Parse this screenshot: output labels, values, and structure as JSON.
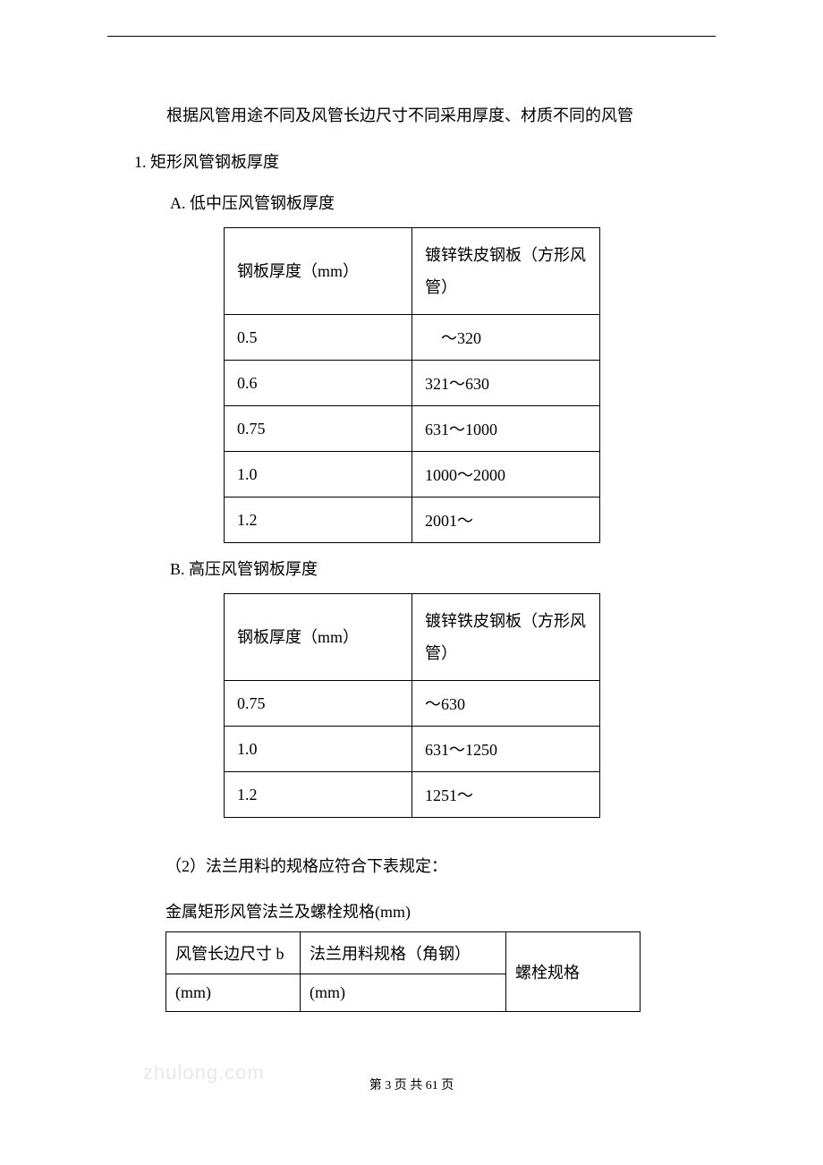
{
  "intro": "根据风管用途不同及风管长边尺寸不同采用厚度、材质不同的风管",
  "section1": {
    "number": "1.",
    "title": "矩形风管钢板厚度",
    "subA": {
      "letter": "A.",
      "title": "低中压风管钢板厚度",
      "table": {
        "header1": "钢板厚度（mm）",
        "header2": "镀锌铁皮钢板（方形风管）",
        "rows": [
          [
            "0.5",
            "　～320"
          ],
          [
            "0.6",
            "321～630"
          ],
          [
            "0.75",
            "631～1000"
          ],
          [
            "1.0",
            "1000～2000"
          ],
          [
            "1.2",
            "2001～"
          ]
        ]
      }
    },
    "subB": {
      "letter": "B.",
      "title": "高压风管钢板厚度",
      "table": {
        "header1": "钢板厚度（mm）",
        "header2": "镀锌铁皮钢板（方形风管）",
        "rows": [
          [
            "0.75",
            "～630"
          ],
          [
            "1.0",
            "631～1250"
          ],
          [
            "1.2",
            "1251～"
          ]
        ]
      }
    }
  },
  "section2": {
    "text": "（2）法兰用料的规格应符合下表规定：",
    "table_title": "金属矩形风管法兰及螺栓规格(mm)",
    "table": {
      "h1_line1": "风管长边尺寸 b",
      "h1_line2": "(mm)",
      "h2_line1": "法兰用料规格（角钢）",
      "h2_line2": "(mm)",
      "h3": "螺栓规格"
    }
  },
  "watermark": "zhulong.com",
  "footer": "第 3 页 共 61 页"
}
